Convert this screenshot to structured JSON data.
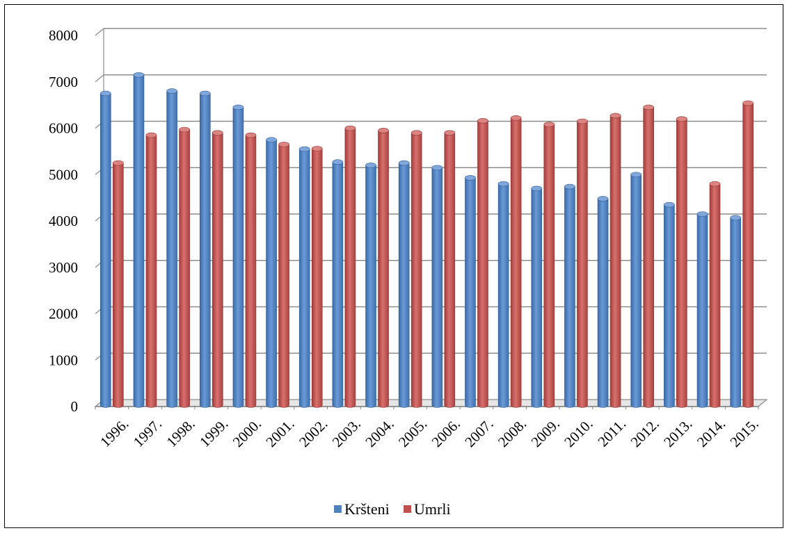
{
  "chart_data": {
    "type": "bar",
    "title": "",
    "xlabel": "",
    "ylabel": "",
    "ylim": [
      0,
      8000
    ],
    "yticks": [
      "0",
      "1000",
      "2000",
      "3000",
      "4000",
      "5000",
      "6000",
      "7000",
      "8000"
    ],
    "grid": true,
    "legend_position": "bottom",
    "categories": [
      "1996.",
      "1997.",
      "1998.",
      "1999.",
      "2000.",
      "2001.",
      "2002.",
      "2003.",
      "2004.",
      "2005.",
      "2006.",
      "2007.",
      "2008.",
      "2009.",
      "2010.",
      "2011.",
      "2012.",
      "2013.",
      "2014.",
      "2015."
    ],
    "series": [
      {
        "name": "Kršteni",
        "color": "#4F81BD",
        "values": [
          6750,
          7150,
          6800,
          6750,
          6450,
          5750,
          5550,
          5270,
          5200,
          5250,
          5150,
          4930,
          4800,
          4700,
          4740,
          4480,
          5000,
          4350,
          4150,
          4070
        ]
      },
      {
        "name": "Umrli",
        "color": "#C0504D",
        "values": [
          5250,
          5850,
          5970,
          5900,
          5850,
          5650,
          5560,
          6000,
          5950,
          5900,
          5900,
          6160,
          6220,
          6080,
          6150,
          6270,
          6450,
          6200,
          4800,
          6540
        ]
      }
    ]
  }
}
